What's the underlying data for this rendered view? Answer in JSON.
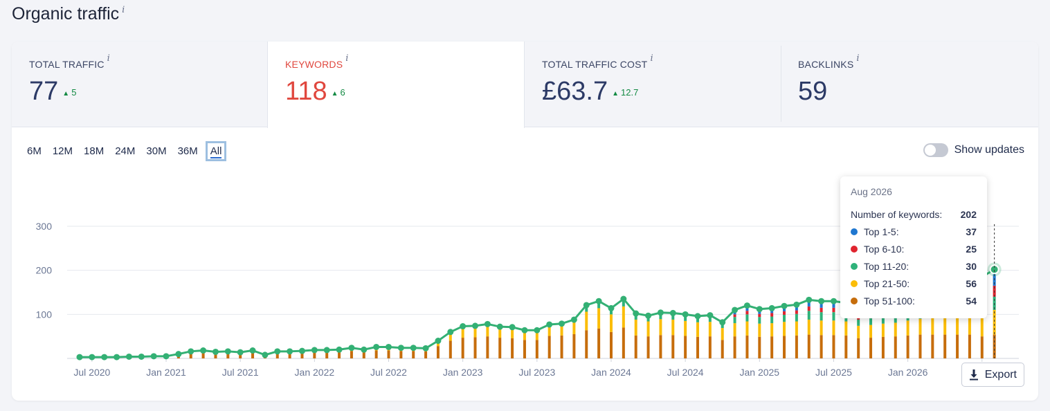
{
  "page": {
    "title": "Organic traffic",
    "info": "i"
  },
  "metrics": [
    {
      "label": "TOTAL TRAFFIC",
      "value": "77",
      "delta": "5"
    },
    {
      "label": "KEYWORDS",
      "value": "118",
      "delta": "6"
    },
    {
      "label": "TOTAL TRAFFIC COST",
      "value": "£63.7",
      "delta": "12.7"
    },
    {
      "label": "BACKLINKS",
      "value": "59",
      "delta": ""
    }
  ],
  "ranges": [
    "6M",
    "12M",
    "18M",
    "24M",
    "30M",
    "36M",
    "All"
  ],
  "active_range": "All",
  "toggle": {
    "label": "Show updates",
    "on": false
  },
  "export_label": "Export",
  "colors": {
    "top1_5": "#1f77d0",
    "top6_10": "#e0242f",
    "top11_20": "#2fb27a",
    "top21_50": "#fbbd08",
    "top51_100": "#c66d0c",
    "line": "#33b074"
  },
  "tooltip": {
    "date": "Aug 2026",
    "total_label": "Number of keywords:",
    "total_value": "202",
    "rows": [
      {
        "label": "Top 1-5:",
        "value": "37",
        "color": "#1f77d0"
      },
      {
        "label": "Top 6-10:",
        "value": "25",
        "color": "#e0242f"
      },
      {
        "label": "Top 11-20:",
        "value": "30",
        "color": "#2fb27a"
      },
      {
        "label": "Top 21-50:",
        "value": "56",
        "color": "#fbbd08"
      },
      {
        "label": "Top 51-100:",
        "value": "54",
        "color": "#c66d0c"
      }
    ]
  },
  "chart_data": {
    "type": "bar",
    "stacked": true,
    "ylim": [
      0,
      300
    ],
    "yticks": [
      100,
      200,
      300
    ],
    "x_tick_labels": [
      "Jul 2020",
      "Jan 2021",
      "Jul 2021",
      "Jan 2022",
      "Jul 2022",
      "Jan 2023",
      "Jul 2023",
      "Jan 2024",
      "Jul 2024",
      "Jan 2025",
      "Jul 2025",
      "Jan 2026",
      "Jul 2026"
    ],
    "grid": true,
    "start": "Jun 2020",
    "series_keys": [
      "top51_100",
      "top21_50",
      "top11_20",
      "top6_10",
      "top1_5"
    ],
    "months": [
      {
        "t": 3,
        "s": [
          3,
          0,
          0,
          0,
          0
        ]
      },
      {
        "t": 3,
        "s": [
          3,
          0,
          0,
          0,
          0
        ]
      },
      {
        "t": 3,
        "s": [
          3,
          0,
          0,
          0,
          0
        ]
      },
      {
        "t": 3,
        "s": [
          3,
          0,
          0,
          0,
          0
        ]
      },
      {
        "t": 4,
        "s": [
          4,
          0,
          0,
          0,
          0
        ]
      },
      {
        "t": 4,
        "s": [
          4,
          0,
          0,
          0,
          0
        ]
      },
      {
        "t": 5,
        "s": [
          5,
          0,
          0,
          0,
          0
        ]
      },
      {
        "t": 5,
        "s": [
          5,
          0,
          0,
          0,
          0
        ]
      },
      {
        "t": 10,
        "s": [
          9,
          1,
          0,
          0,
          0
        ]
      },
      {
        "t": 16,
        "s": [
          12,
          3,
          1,
          0,
          0
        ]
      },
      {
        "t": 18,
        "s": [
          13,
          4,
          1,
          0,
          0
        ]
      },
      {
        "t": 15,
        "s": [
          11,
          3,
          1,
          0,
          0
        ]
      },
      {
        "t": 16,
        "s": [
          12,
          3,
          1,
          0,
          0
        ]
      },
      {
        "t": 14,
        "s": [
          10,
          3,
          1,
          0,
          0
        ]
      },
      {
        "t": 18,
        "s": [
          13,
          4,
          1,
          0,
          0
        ]
      },
      {
        "t": 8,
        "s": [
          6,
          2,
          0,
          0,
          0
        ]
      },
      {
        "t": 16,
        "s": [
          12,
          3,
          1,
          0,
          0
        ]
      },
      {
        "t": 16,
        "s": [
          12,
          3,
          1,
          0,
          0
        ]
      },
      {
        "t": 17,
        "s": [
          12,
          4,
          1,
          0,
          0
        ]
      },
      {
        "t": 19,
        "s": [
          13,
          5,
          1,
          0,
          0
        ]
      },
      {
        "t": 19,
        "s": [
          13,
          5,
          1,
          0,
          0
        ]
      },
      {
        "t": 20,
        "s": [
          14,
          5,
          1,
          0,
          0
        ]
      },
      {
        "t": 24,
        "s": [
          17,
          6,
          1,
          0,
          0
        ]
      },
      {
        "t": 20,
        "s": [
          14,
          5,
          1,
          0,
          0
        ]
      },
      {
        "t": 26,
        "s": [
          18,
          7,
          1,
          0,
          0
        ]
      },
      {
        "t": 26,
        "s": [
          18,
          7,
          1,
          0,
          0
        ]
      },
      {
        "t": 24,
        "s": [
          17,
          6,
          1,
          0,
          0
        ]
      },
      {
        "t": 24,
        "s": [
          17,
          6,
          1,
          0,
          0
        ]
      },
      {
        "t": 23,
        "s": [
          16,
          6,
          1,
          0,
          0
        ]
      },
      {
        "t": 40,
        "s": [
          28,
          10,
          2,
          0,
          0
        ]
      },
      {
        "t": 60,
        "s": [
          40,
          17,
          3,
          0,
          0
        ]
      },
      {
        "t": 73,
        "s": [
          47,
          22,
          4,
          0,
          0
        ]
      },
      {
        "t": 74,
        "s": [
          48,
          22,
          4,
          0,
          0
        ]
      },
      {
        "t": 78,
        "s": [
          50,
          24,
          4,
          0,
          0
        ]
      },
      {
        "t": 72,
        "s": [
          47,
          21,
          4,
          0,
          0
        ]
      },
      {
        "t": 71,
        "s": [
          46,
          21,
          4,
          0,
          0
        ]
      },
      {
        "t": 64,
        "s": [
          42,
          18,
          4,
          0,
          0
        ]
      },
      {
        "t": 64,
        "s": [
          42,
          18,
          4,
          0,
          0
        ]
      },
      {
        "t": 77,
        "s": [
          51,
          21,
          5,
          0,
          0
        ]
      },
      {
        "t": 79,
        "s": [
          52,
          22,
          5,
          0,
          0
        ]
      },
      {
        "t": 88,
        "s": [
          55,
          26,
          6,
          1,
          0
        ]
      },
      {
        "t": 121,
        "s": [
          64,
          42,
          10,
          3,
          2
        ]
      },
      {
        "t": 130,
        "s": [
          68,
          46,
          11,
          3,
          2
        ]
      },
      {
        "t": 114,
        "s": [
          60,
          40,
          10,
          2,
          2
        ]
      },
      {
        "t": 135,
        "s": [
          70,
          48,
          12,
          3,
          2
        ]
      },
      {
        "t": 102,
        "s": [
          52,
          36,
          10,
          2,
          2
        ]
      },
      {
        "t": 97,
        "s": [
          50,
          34,
          9,
          2,
          2
        ]
      },
      {
        "t": 104,
        "s": [
          53,
          36,
          10,
          3,
          2
        ]
      },
      {
        "t": 103,
        "s": [
          53,
          35,
          10,
          3,
          2
        ]
      },
      {
        "t": 100,
        "s": [
          51,
          34,
          10,
          3,
          2
        ]
      },
      {
        "t": 96,
        "s": [
          49,
          33,
          9,
          3,
          2
        ]
      },
      {
        "t": 98,
        "s": [
          50,
          33,
          9,
          3,
          3
        ]
      },
      {
        "t": 82,
        "s": [
          42,
          27,
          8,
          3,
          2
        ]
      },
      {
        "t": 110,
        "s": [
          50,
          30,
          14,
          6,
          10
        ]
      },
      {
        "t": 120,
        "s": [
          52,
          32,
          16,
          8,
          12
        ]
      },
      {
        "t": 112,
        "s": [
          49,
          30,
          15,
          7,
          11
        ]
      },
      {
        "t": 114,
        "s": [
          50,
          30,
          15,
          8,
          11
        ]
      },
      {
        "t": 119,
        "s": [
          51,
          32,
          16,
          8,
          12
        ]
      },
      {
        "t": 122,
        "s": [
          52,
          32,
          17,
          8,
          13
        ]
      },
      {
        "t": 133,
        "s": [
          54,
          34,
          20,
          10,
          15
        ]
      },
      {
        "t": 130,
        "s": [
          53,
          33,
          19,
          10,
          15
        ]
      },
      {
        "t": 130,
        "s": [
          53,
          33,
          19,
          10,
          15
        ]
      },
      {
        "t": 126,
        "s": [
          52,
          32,
          18,
          9,
          15
        ]
      },
      {
        "t": 108,
        "s": [
          46,
          28,
          14,
          8,
          12
        ]
      },
      {
        "t": 112,
        "s": [
          47,
          29,
          15,
          8,
          13
        ]
      },
      {
        "t": 118,
        "s": [
          49,
          30,
          16,
          9,
          14
        ]
      },
      {
        "t": 122,
        "s": [
          50,
          31,
          17,
          9,
          15
        ]
      },
      {
        "t": 130,
        "s": [
          52,
          34,
          18,
          10,
          16
        ]
      },
      {
        "t": 140,
        "s": [
          54,
          36,
          20,
          12,
          18
        ]
      },
      {
        "t": 150,
        "s": [
          54,
          40,
          22,
          14,
          20
        ]
      },
      {
        "t": 160,
        "s": [
          54,
          44,
          24,
          16,
          22
        ]
      },
      {
        "t": 170,
        "s": [
          54,
          48,
          26,
          18,
          24
        ]
      },
      {
        "t": 180,
        "s": [
          54,
          52,
          28,
          20,
          26
        ]
      },
      {
        "t": 185,
        "s": [
          50,
          50,
          28,
          22,
          35
        ]
      },
      {
        "t": 202,
        "s": [
          54,
          56,
          30,
          25,
          37
        ]
      }
    ]
  }
}
